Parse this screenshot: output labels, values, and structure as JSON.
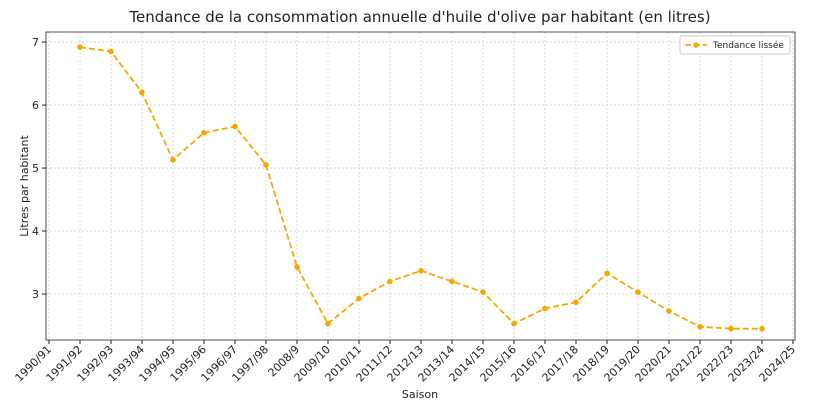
{
  "chart_data": {
    "type": "line",
    "title": "Tendance de la consommation annuelle d'huile d'olive par habitant (en litres)",
    "x_label": "Saison",
    "y_label": "Litres par habitant",
    "categories": [
      "1990/91",
      "1991/92",
      "1992/93",
      "1993/94",
      "1994/95",
      "1995/96",
      "1996/97",
      "1997/98",
      "2008/9",
      "2009/10",
      "2010/11",
      "2011/12",
      "2012/13",
      "2013/14",
      "2014/15",
      "2015/16",
      "2016/17",
      "2017/18",
      "2018/19",
      "2019/20",
      "2020/21",
      "2021/22",
      "2022/23",
      "2023/24",
      "2024/25"
    ],
    "series": [
      {
        "name": "Tendance lissée",
        "color": "#f5a800",
        "values": [
          null,
          6.92,
          6.85,
          6.2,
          5.13,
          5.56,
          5.66,
          5.05,
          3.43,
          2.53,
          2.93,
          3.2,
          3.37,
          3.2,
          3.03,
          2.53,
          2.77,
          2.87,
          3.33,
          3.03,
          2.73,
          2.48,
          2.45,
          2.45,
          null
        ]
      }
    ],
    "ylim": [
      2.27,
      7.16
    ],
    "yticks": [
      3,
      4,
      5,
      6,
      7
    ],
    "grid": true,
    "legend": "upper right"
  }
}
